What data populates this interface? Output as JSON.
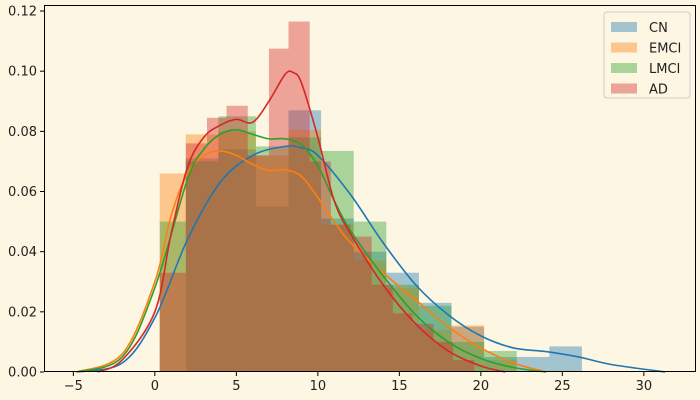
{
  "chart_data": {
    "type": "histogram_kde",
    "title": "",
    "xlabel": "",
    "ylabel": "",
    "xlim": [
      -6.8,
      33.2
    ],
    "ylim": [
      0,
      0.122
    ],
    "xticks": [
      -5,
      0,
      5,
      10,
      15,
      20,
      25,
      30
    ],
    "yticks": [
      0.0,
      0.02,
      0.04,
      0.06,
      0.08,
      0.1,
      0.12
    ],
    "ytick_labels": [
      "0.00",
      "0.02",
      "0.04",
      "0.06",
      "0.08",
      "0.10",
      "0.12"
    ],
    "grid": false,
    "legend": {
      "placement": "top-right"
    },
    "series": [
      {
        "name": "CN",
        "color": "#1f77b4",
        "bins": [
          {
            "x0": 0.3,
            "x1": 1.9,
            "y": 0.0
          },
          {
            "x0": 1.9,
            "x1": 3.9,
            "y": 0.071
          },
          {
            "x0": 3.9,
            "x1": 6.2,
            "y": 0.074
          },
          {
            "x0": 6.2,
            "x1": 8.2,
            "y": 0.055
          },
          {
            "x0": 8.2,
            "x1": 10.2,
            "y": 0.087
          },
          {
            "x0": 10.2,
            "x1": 12.2,
            "y": 0.051
          },
          {
            "x0": 12.2,
            "x1": 14.2,
            "y": 0.04
          },
          {
            "x0": 14.2,
            "x1": 16.2,
            "y": 0.033
          },
          {
            "x0": 16.2,
            "x1": 18.2,
            "y": 0.023
          },
          {
            "x0": 18.2,
            "x1": 20.2,
            "y": 0.015
          },
          {
            "x0": 20.2,
            "x1": 24.2,
            "y": 0.005
          },
          {
            "x0": 24.2,
            "x1": 26.2,
            "y": 0.0085
          }
        ],
        "kde": {
          "x": [
            -4.8,
            -2,
            0,
            2,
            4,
            6,
            8,
            9,
            10,
            12,
            14,
            16,
            18,
            20,
            22,
            24,
            26,
            28,
            31.3
          ],
          "y": [
            0.0,
            0.003,
            0.018,
            0.044,
            0.063,
            0.072,
            0.075,
            0.0745,
            0.072,
            0.059,
            0.043,
            0.029,
            0.019,
            0.012,
            0.008,
            0.0068,
            0.005,
            0.0025,
            0.0
          ]
        }
      },
      {
        "name": "EMCI",
        "color": "#ff7f0e",
        "bins": [
          {
            "x0": 0.3,
            "x1": 1.9,
            "y": 0.066
          },
          {
            "x0": 1.9,
            "x1": 3.9,
            "y": 0.079
          },
          {
            "x0": 3.9,
            "x1": 6.2,
            "y": 0.08
          },
          {
            "x0": 6.2,
            "x1": 8.2,
            "y": 0.072
          },
          {
            "x0": 8.2,
            "x1": 10.2,
            "y": 0.0805
          },
          {
            "x0": 10.2,
            "x1": 12.2,
            "y": 0.049
          },
          {
            "x0": 12.2,
            "x1": 14.2,
            "y": 0.037
          },
          {
            "x0": 14.2,
            "x1": 16.2,
            "y": 0.028
          },
          {
            "x0": 16.2,
            "x1": 18.2,
            "y": 0.014
          },
          {
            "x0": 18.2,
            "x1": 20.2,
            "y": 0.0155
          },
          {
            "x0": 20.2,
            "x1": 22.2,
            "y": 0.004
          }
        ],
        "kde": {
          "x": [
            -4.8,
            -2,
            0,
            1,
            2,
            3,
            4,
            5,
            6,
            7,
            8,
            9,
            10,
            11,
            12,
            14,
            16,
            18,
            20,
            22,
            24
          ],
          "y": [
            0.0,
            0.006,
            0.03,
            0.052,
            0.066,
            0.072,
            0.0735,
            0.072,
            0.069,
            0.067,
            0.0672,
            0.065,
            0.058,
            0.05,
            0.043,
            0.033,
            0.024,
            0.015,
            0.008,
            0.003,
            0.0
          ]
        }
      },
      {
        "name": "LMCI",
        "color": "#2ca02c",
        "bins": [
          {
            "x0": 0.3,
            "x1": 1.9,
            "y": 0.05
          },
          {
            "x0": 1.9,
            "x1": 3.9,
            "y": 0.07
          },
          {
            "x0": 3.9,
            "x1": 6.2,
            "y": 0.085
          },
          {
            "x0": 6.2,
            "x1": 8.2,
            "y": 0.075
          },
          {
            "x0": 8.2,
            "x1": 10.2,
            "y": 0.078
          },
          {
            "x0": 10.2,
            "x1": 12.2,
            "y": 0.0735
          },
          {
            "x0": 12.2,
            "x1": 14.2,
            "y": 0.05
          },
          {
            "x0": 14.2,
            "x1": 16.2,
            "y": 0.029
          },
          {
            "x0": 16.2,
            "x1": 18.2,
            "y": 0.022
          },
          {
            "x0": 18.2,
            "x1": 20.2,
            "y": 0.01
          },
          {
            "x0": 20.2,
            "x1": 22.2,
            "y": 0.007
          }
        ],
        "kde": {
          "x": [
            -4.8,
            -2,
            0,
            2,
            3,
            4,
            5,
            6,
            7,
            8,
            9,
            10,
            11,
            12,
            14,
            16,
            18,
            20,
            22,
            24
          ],
          "y": [
            0.0,
            0.005,
            0.028,
            0.064,
            0.074,
            0.079,
            0.0805,
            0.079,
            0.0775,
            0.0775,
            0.0755,
            0.0685,
            0.057,
            0.047,
            0.032,
            0.019,
            0.01,
            0.0045,
            0.0015,
            0.0
          ]
        }
      },
      {
        "name": "AD",
        "color": "#d62728",
        "bins": [
          {
            "x0": 0.3,
            "x1": 1.9,
            "y": 0.033
          },
          {
            "x0": 1.9,
            "x1": 3.2,
            "y": 0.076
          },
          {
            "x0": 3.2,
            "x1": 4.4,
            "y": 0.0845
          },
          {
            "x0": 4.4,
            "x1": 5.7,
            "y": 0.0885
          },
          {
            "x0": 5.7,
            "x1": 7.0,
            "y": 0.072
          },
          {
            "x0": 7.0,
            "x1": 8.2,
            "y": 0.1075
          },
          {
            "x0": 8.2,
            "x1": 9.5,
            "y": 0.1165
          },
          {
            "x0": 9.5,
            "x1": 10.8,
            "y": 0.07
          },
          {
            "x0": 10.8,
            "x1": 12.0,
            "y": 0.049
          },
          {
            "x0": 12.0,
            "x1": 13.3,
            "y": 0.045
          },
          {
            "x0": 13.3,
            "x1": 14.6,
            "y": 0.029
          },
          {
            "x0": 14.6,
            "x1": 15.8,
            "y": 0.0195
          },
          {
            "x0": 15.8,
            "x1": 17.1,
            "y": 0.016
          },
          {
            "x0": 17.1,
            "x1": 18.3,
            "y": 0.01
          },
          {
            "x0": 18.3,
            "x1": 19.6,
            "y": 0.004
          }
        ],
        "kde": {
          "x": [
            -3.5,
            -2,
            0,
            1,
            2,
            3,
            4,
            5,
            6,
            7,
            8,
            8.5,
            9,
            10,
            11,
            12,
            14,
            16,
            18,
            20,
            21.5
          ],
          "y": [
            0.0,
            0.004,
            0.02,
            0.046,
            0.068,
            0.078,
            0.082,
            0.084,
            0.083,
            0.09,
            0.099,
            0.0995,
            0.096,
            0.078,
            0.057,
            0.046,
            0.029,
            0.016,
            0.007,
            0.002,
            0.0
          ]
        }
      }
    ]
  }
}
